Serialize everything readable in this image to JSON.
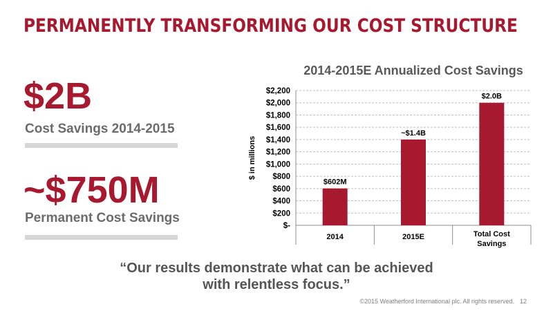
{
  "slide": {
    "title": "PERMANENTLY TRANSFORMING OUR COST STRUCTURE",
    "stat1": {
      "value": "$2B",
      "label": "Cost Savings 2014-2015"
    },
    "stat2": {
      "value": "~$750M",
      "label": "Permanent Cost Savings"
    },
    "quote_line1": "“Our results demonstrate what can be achieved",
    "quote_line2": "with relentless focus.”",
    "footer": "©2015 Weatherford International plc.  All rights reserved.",
    "page_number": "12"
  },
  "colors": {
    "accent": "#a6192e",
    "subtext": "#6b6b6b",
    "divider": "#d6d6d6"
  },
  "chart_data": {
    "type": "bar",
    "title": "2014-2015E Annualized Cost Savings",
    "ylabel": "$ in millions",
    "xlabel": "",
    "categories": [
      [
        "2014"
      ],
      [
        "2015E"
      ],
      [
        "Total Cost",
        "Savings"
      ]
    ],
    "values": [
      602,
      1400,
      2000
    ],
    "data_labels": [
      "$602M",
      "~$1.4B",
      "$2.0B"
    ],
    "ylim": [
      0,
      2200
    ],
    "yticks": [
      0,
      200,
      400,
      600,
      800,
      1000,
      1200,
      1400,
      1600,
      1800,
      2000,
      2200
    ],
    "ytick_labels": [
      "$-",
      "$200",
      "$400",
      "$600",
      "$800",
      "$1,000",
      "$1,200",
      "$1,400",
      "$1,600",
      "$1,800",
      "$2,000",
      "$2,200"
    ],
    "grid": true,
    "bar_color": "#a6192e"
  }
}
